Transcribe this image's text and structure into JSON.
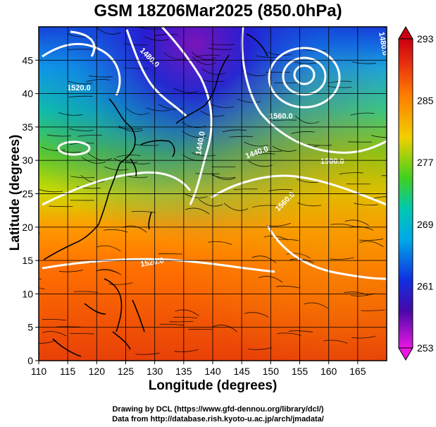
{
  "title": "GSM 18Z06Mar2025 (850.0hPa)",
  "x_axis": {
    "label": "Longitude (degrees)",
    "ticks": [
      "110",
      "115",
      "120",
      "125",
      "130",
      "135",
      "140",
      "145",
      "150",
      "155",
      "160",
      "165"
    ]
  },
  "y_axis": {
    "label": "Latitude  (degrees)",
    "ticks": [
      "0",
      "5",
      "10",
      "15",
      "20",
      "25",
      "30",
      "35",
      "40",
      "45"
    ]
  },
  "colorbar": {
    "labels": [
      "293",
      "285",
      "277",
      "269",
      "261",
      "253"
    ],
    "colors": [
      "#c80010",
      "#e83010",
      "#ff6a00",
      "#ff9a00",
      "#f0c000",
      "#c8e000",
      "#60d000",
      "#00c870",
      "#00c8d0",
      "#0090e8",
      "#1030e0",
      "#1808a0",
      "#5808a8",
      "#a010c0",
      "#e018e0"
    ]
  },
  "contour_labels": [
    "1480.0",
    "1440.0",
    "1560.0",
    "1520.0",
    "1440.0",
    "1560.0",
    "1480.0",
    "1520.0",
    "1500.0"
  ],
  "credits": {
    "line1": "Drawing by DCL (https://www.gfd-dennou.org/library/dcl/)",
    "line2": "Data from http://database.rish.kyoto-u.ac.jp/arch/jmadata/"
  },
  "chart_data": {
    "type": "heatmap",
    "title": "GSM 18Z06Mar2025 (850.0hPa)",
    "xlabel": "Longitude (degrees)",
    "ylabel": "Latitude  (degrees)",
    "xlim": [
      110,
      170
    ],
    "ylim": [
      0,
      50
    ],
    "colorbar_range": [
      253,
      293
    ],
    "grid": true
  }
}
